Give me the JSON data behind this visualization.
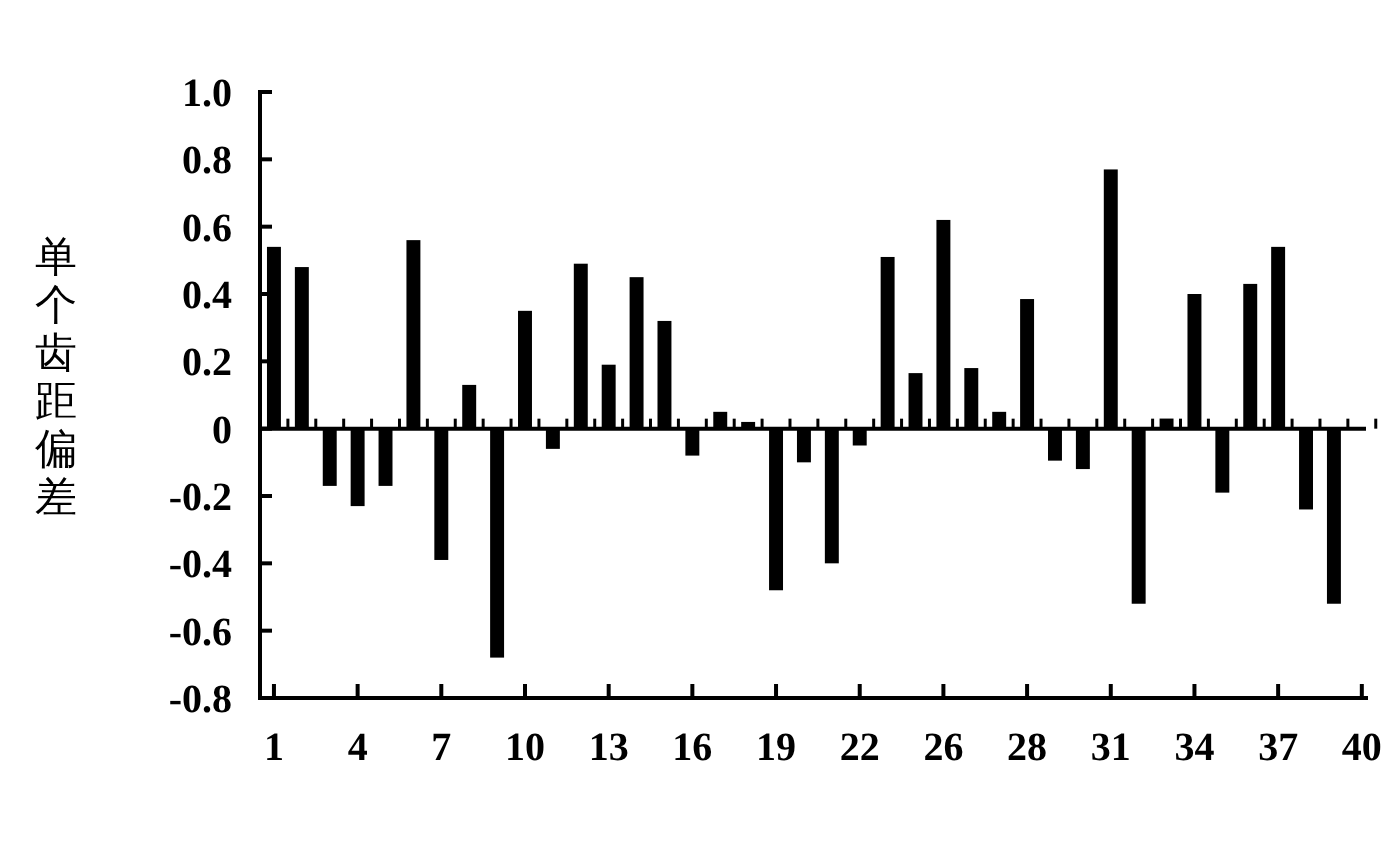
{
  "chart_data": {
    "type": "bar",
    "ylabel": "单个齿距偏差",
    "categories": [
      "1",
      null,
      null,
      "4",
      null,
      null,
      "7",
      null,
      null,
      "10",
      null,
      null,
      "13",
      null,
      null,
      "16",
      null,
      null,
      "19",
      null,
      null,
      "22",
      null,
      null,
      "26",
      null,
      null,
      "28",
      null,
      null,
      "31",
      null,
      null,
      "34",
      null,
      null,
      "37",
      null,
      null,
      "40"
    ],
    "values": [
      0.54,
      0.48,
      -0.17,
      -0.23,
      -0.17,
      0.56,
      -0.39,
      0.13,
      -0.68,
      0.35,
      -0.06,
      0.49,
      0.19,
      0.45,
      0.32,
      -0.08,
      0.05,
      0.02,
      -0.48,
      -0.1,
      -0.4,
      -0.05,
      0.51,
      0.165,
      0.62,
      0.18,
      0.05,
      0.385,
      -0.095,
      -0.12,
      0.77,
      -0.52,
      0.03,
      0.4,
      -0.19,
      0.43,
      0.54,
      -0.24,
      -0.52,
      null
    ],
    "color": "#000000",
    "ylim": [
      -0.8,
      1.0
    ],
    "yticks": [
      {
        "value": 1.0,
        "label": "1.0"
      },
      0.8,
      0.6,
      0.4,
      0.2,
      0,
      -0.2,
      -0.4,
      -0.6,
      -0.8
    ],
    "ref_lines": [
      {
        "axis": "y",
        "value": 0
      }
    ],
    "grid": false
  }
}
